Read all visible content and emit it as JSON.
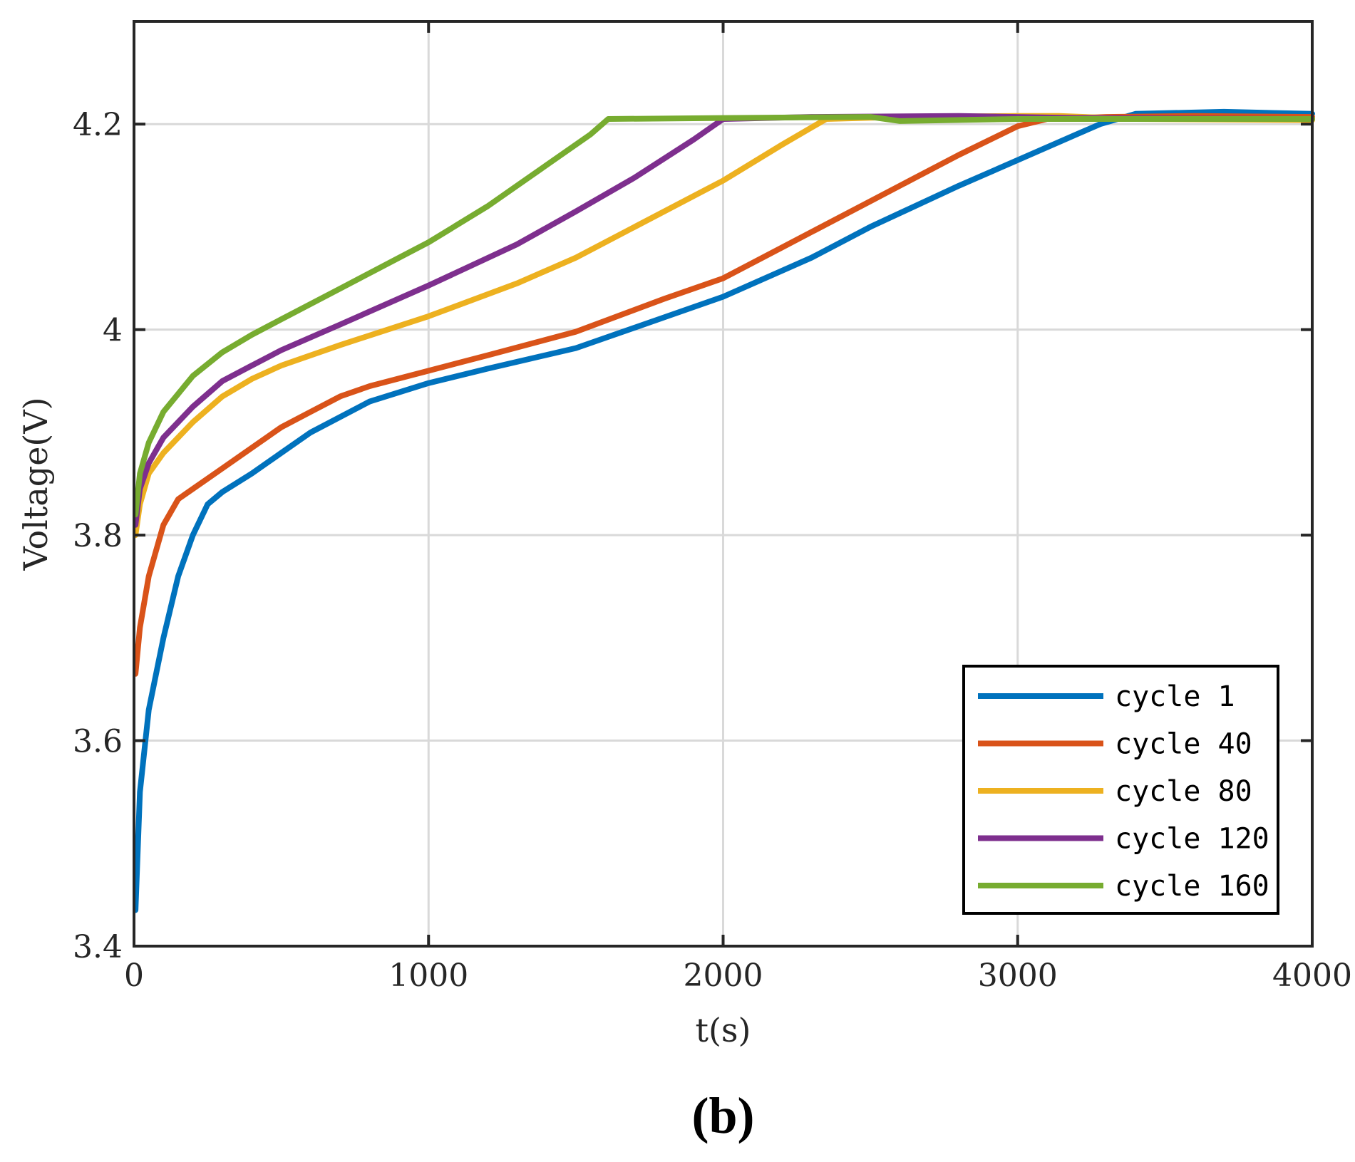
{
  "chart_data": {
    "type": "line",
    "title": "",
    "xlabel": "t(s)",
    "ylabel": "Voltage(V)",
    "panel_label": "(b)",
    "xlim": [
      0,
      4000
    ],
    "ylim": [
      3.4,
      4.3
    ],
    "xticks": [
      0,
      1000,
      2000,
      3000,
      4000
    ],
    "xtick_labels": [
      "0",
      "1000",
      "2000",
      "3000",
      "4000"
    ],
    "yticks": [
      3.4,
      3.6,
      3.8,
      4.0,
      4.2
    ],
    "ytick_labels": [
      "3.4",
      "3.6",
      "3.8",
      "4",
      "4.2"
    ],
    "grid": true,
    "legend_position": "bottom-right",
    "series": [
      {
        "name": "cycle 1",
        "color": "#0072BD",
        "points": [
          [
            5,
            3.435
          ],
          [
            20,
            3.55
          ],
          [
            50,
            3.63
          ],
          [
            100,
            3.7
          ],
          [
            150,
            3.76
          ],
          [
            200,
            3.8
          ],
          [
            250,
            3.83
          ],
          [
            300,
            3.842
          ],
          [
            400,
            3.86
          ],
          [
            500,
            3.88
          ],
          [
            600,
            3.9
          ],
          [
            800,
            3.93
          ],
          [
            1000,
            3.948
          ],
          [
            1200,
            3.962
          ],
          [
            1500,
            3.982
          ],
          [
            1800,
            4.012
          ],
          [
            2000,
            4.032
          ],
          [
            2300,
            4.07
          ],
          [
            2500,
            4.1
          ],
          [
            2800,
            4.14
          ],
          [
            3000,
            4.165
          ],
          [
            3200,
            4.19
          ],
          [
            3280,
            4.2
          ],
          [
            3400,
            4.21
          ],
          [
            3700,
            4.212
          ],
          [
            4000,
            4.21
          ]
        ]
      },
      {
        "name": "cycle 40",
        "color": "#D95319",
        "points": [
          [
            5,
            3.665
          ],
          [
            20,
            3.71
          ],
          [
            50,
            3.76
          ],
          [
            100,
            3.81
          ],
          [
            150,
            3.835
          ],
          [
            200,
            3.845
          ],
          [
            300,
            3.865
          ],
          [
            400,
            3.885
          ],
          [
            500,
            3.905
          ],
          [
            600,
            3.92
          ],
          [
            700,
            3.935
          ],
          [
            800,
            3.945
          ],
          [
            1000,
            3.96
          ],
          [
            1200,
            3.975
          ],
          [
            1500,
            3.998
          ],
          [
            1800,
            4.03
          ],
          [
            2000,
            4.05
          ],
          [
            2200,
            4.08
          ],
          [
            2500,
            4.125
          ],
          [
            2800,
            4.17
          ],
          [
            3000,
            4.198
          ],
          [
            3100,
            4.205
          ],
          [
            3300,
            4.207
          ],
          [
            3600,
            4.208
          ],
          [
            4000,
            4.207
          ]
        ]
      },
      {
        "name": "cycle 80",
        "color": "#EDB120",
        "points": [
          [
            5,
            3.8
          ],
          [
            20,
            3.83
          ],
          [
            50,
            3.86
          ],
          [
            100,
            3.88
          ],
          [
            200,
            3.91
          ],
          [
            300,
            3.935
          ],
          [
            400,
            3.952
          ],
          [
            500,
            3.965
          ],
          [
            700,
            3.985
          ],
          [
            1000,
            4.013
          ],
          [
            1300,
            4.045
          ],
          [
            1500,
            4.07
          ],
          [
            1700,
            4.1
          ],
          [
            2000,
            4.145
          ],
          [
            2200,
            4.18
          ],
          [
            2350,
            4.205
          ],
          [
            2600,
            4.207
          ],
          [
            3000,
            4.208
          ],
          [
            3140,
            4.208
          ],
          [
            3400,
            4.205
          ],
          [
            4000,
            4.204
          ]
        ]
      },
      {
        "name": "cycle 120",
        "color": "#7E2F8E",
        "points": [
          [
            5,
            3.81
          ],
          [
            20,
            3.845
          ],
          [
            50,
            3.87
          ],
          [
            100,
            3.895
          ],
          [
            200,
            3.925
          ],
          [
            300,
            3.95
          ],
          [
            400,
            3.965
          ],
          [
            500,
            3.98
          ],
          [
            700,
            4.005
          ],
          [
            1000,
            4.043
          ],
          [
            1300,
            4.083
          ],
          [
            1500,
            4.115
          ],
          [
            1700,
            4.148
          ],
          [
            1900,
            4.185
          ],
          [
            2000,
            4.205
          ],
          [
            2300,
            4.207
          ],
          [
            2800,
            4.208
          ],
          [
            3200,
            4.206
          ],
          [
            4000,
            4.205
          ]
        ]
      },
      {
        "name": "cycle 160",
        "color": "#77AC30",
        "points": [
          [
            5,
            3.82
          ],
          [
            20,
            3.86
          ],
          [
            50,
            3.89
          ],
          [
            100,
            3.92
          ],
          [
            200,
            3.955
          ],
          [
            300,
            3.978
          ],
          [
            400,
            3.995
          ],
          [
            500,
            4.01
          ],
          [
            700,
            4.04
          ],
          [
            900,
            4.07
          ],
          [
            1000,
            4.085
          ],
          [
            1200,
            4.12
          ],
          [
            1400,
            4.16
          ],
          [
            1550,
            4.19
          ],
          [
            1610,
            4.205
          ],
          [
            2000,
            4.206
          ],
          [
            2500,
            4.207
          ],
          [
            2600,
            4.203
          ],
          [
            3000,
            4.205
          ],
          [
            4000,
            4.205
          ]
        ]
      }
    ]
  }
}
